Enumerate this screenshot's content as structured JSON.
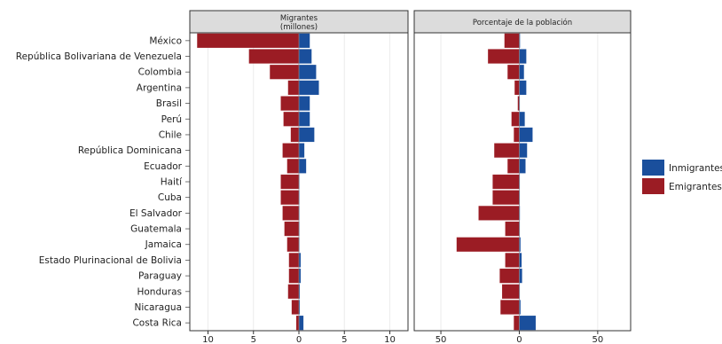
{
  "chart_data": {
    "type": "bar",
    "orientation": "horizontal",
    "categories": [
      "México",
      "República Bolivariana de Venezuela",
      "Colombia",
      "Argentina",
      "Brasil",
      "Perú",
      "Chile",
      "República Dominicana",
      "Ecuador",
      "Haití",
      "Cuba",
      "El Salvador",
      "Guatemala",
      "Jamaica",
      "Estado Plurinacional de Bolivia",
      "Paraguay",
      "Honduras",
      "Nicaragua",
      "Costa Rica"
    ],
    "legend": {
      "position": "right",
      "items": [
        {
          "name": "Inmigrantes",
          "color": "#1a4f9c"
        },
        {
          "name": "Emigrantes",
          "color": "#9b1c24"
        }
      ]
    },
    "panels": [
      {
        "title_line1": "Migrantes",
        "title_line2": "(millones)",
        "xlim": [
          -12,
          12
        ],
        "ticks": [
          -10,
          -5,
          0,
          5,
          10
        ],
        "tick_labels": [
          "10",
          "5",
          "0",
          "5",
          "10"
        ],
        "series": [
          {
            "name": "Inmigrantes",
            "values": [
              1.2,
              1.4,
              1.9,
              2.2,
              1.2,
              1.2,
              1.7,
              0.6,
              0.8,
              0.0,
              0.0,
              0.0,
              0.0,
              0.0,
              0.2,
              0.2,
              0.1,
              0.1,
              0.5
            ]
          },
          {
            "name": "Emigrantes",
            "values": [
              -11.2,
              -5.5,
              -3.2,
              -1.2,
              -2.0,
              -1.7,
              -0.9,
              -1.8,
              -1.3,
              -2.0,
              -2.0,
              -1.8,
              -1.6,
              -1.3,
              -1.1,
              -1.1,
              -1.2,
              -0.8,
              -0.3
            ]
          }
        ]
      },
      {
        "title_line1": "Porcentaje de la población",
        "title_line2": "",
        "xlim": [
          -67,
          71
        ],
        "ticks": [
          -50,
          0,
          50
        ],
        "tick_labels": [
          "50",
          "0",
          "50"
        ],
        "series": [
          {
            "name": "Inmigrantes",
            "values": [
              0.5,
              4.5,
              3.0,
              4.5,
              0.3,
              3.5,
              8.5,
              5.0,
              4.0,
              0.2,
              0.1,
              0.4,
              0.3,
              0.8,
              1.5,
              1.8,
              0.3,
              0.8,
              10.5
            ]
          },
          {
            "name": "Emigrantes",
            "values": [
              -9.5,
              -20.0,
              -7.5,
              -3.0,
              -1.0,
              -5.0,
              -3.5,
              -16.0,
              -7.5,
              -17.0,
              -17.0,
              -26.0,
              -9.0,
              -40.0,
              -9.0,
              -12.5,
              -11.0,
              -12.0,
              -3.5
            ]
          }
        ]
      }
    ]
  }
}
